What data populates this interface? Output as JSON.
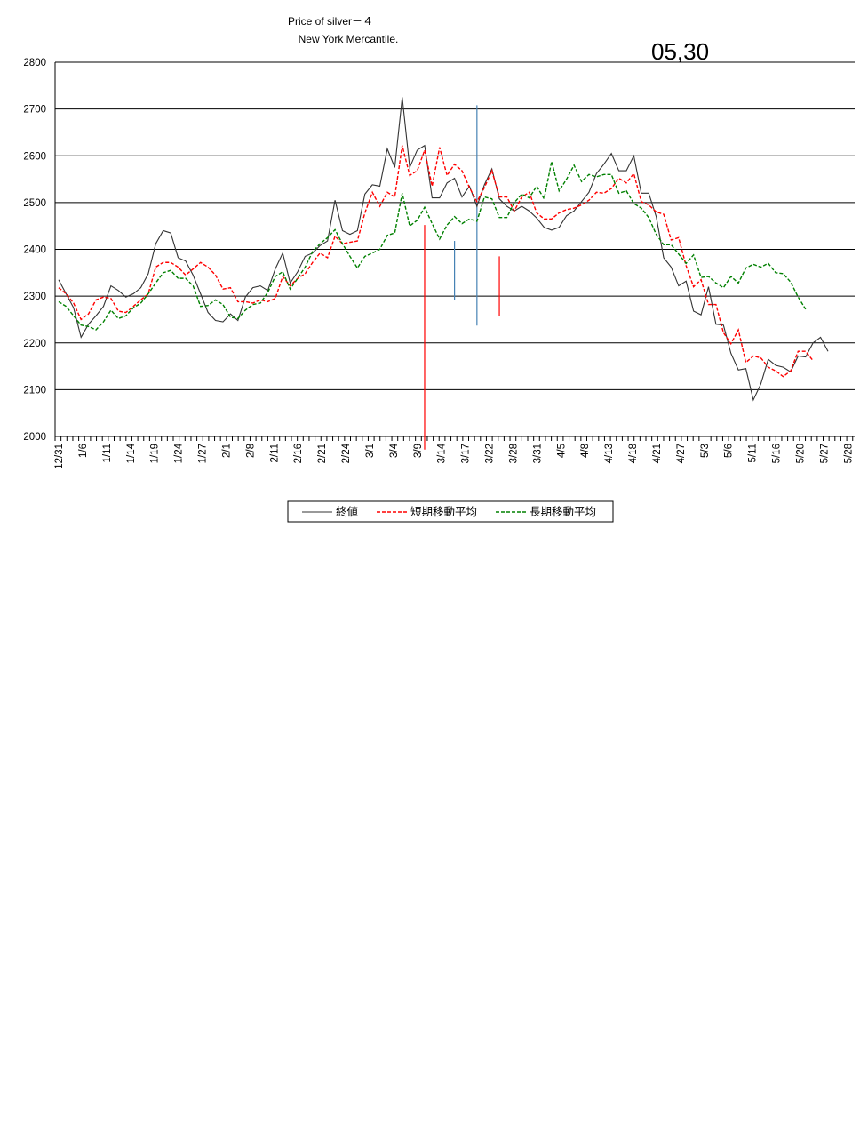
{
  "chart_data": {
    "type": "line",
    "title": "Price of silver－４",
    "subtitle": "New York Mercantile.",
    "date_stamp": "05,30",
    "ylim": [
      2000,
      2800
    ],
    "yticks": [
      "2000",
      "2100",
      "2200",
      "2300",
      "2400",
      "2500",
      "2600",
      "2700",
      "2800"
    ],
    "xtick_labels": [
      "12/31",
      "1/6",
      "1/11",
      "1/14",
      "1/19",
      "1/24",
      "1/27",
      "2/1",
      "2/8",
      "2/11",
      "2/16",
      "2/21",
      "2/24",
      "3/1",
      "3/4",
      "3/9",
      "3/14",
      "3/17",
      "3/22",
      "3/28",
      "3/31",
      "4/5",
      "4/8",
      "4/13",
      "4/18",
      "4/21",
      "4/27",
      "5/3",
      "5/6",
      "5/11",
      "5/16",
      "5/20",
      "5/27",
      "5/28"
    ],
    "grid": true,
    "legend_position": "bottom",
    "colors": {
      "close": "#333333",
      "short": "#ff0000",
      "long": "#008000",
      "grid": "#000000"
    },
    "series": [
      {
        "name": "終値",
        "style": "solid",
        "values": [
          2335,
          2305,
          2275,
          2212,
          2240,
          2258,
          2278,
          2322,
          2312,
          2298,
          2305,
          2318,
          2348,
          2412,
          2440,
          2435,
          2382,
          2375,
          2345,
          2305,
          2265,
          2248,
          2245,
          2262,
          2248,
          2298,
          2318,
          2322,
          2312,
          2358,
          2392,
          2328,
          2352,
          2385,
          2392,
          2408,
          2418,
          2505,
          2440,
          2432,
          2440,
          2518,
          2538,
          2535,
          2615,
          2575,
          2725,
          2575,
          2612,
          2622,
          2510,
          2510,
          2542,
          2552,
          2512,
          2535,
          2492,
          2538,
          2572,
          2508,
          2492,
          2482,
          2492,
          2482,
          2467,
          2447,
          2441,
          2447,
          2472,
          2482,
          2502,
          2522,
          2562,
          2582,
          2605,
          2568,
          2568,
          2600,
          2520,
          2520,
          2470,
          2382,
          2362,
          2322,
          2332,
          2268,
          2260,
          2320,
          2240,
          2238,
          2178,
          2142,
          2145,
          2078,
          2112,
          2165,
          2152,
          2148,
          2138,
          2172,
          2170,
          2200,
          2212,
          2182
        ]
      },
      {
        "name": "短期移動平均",
        "style": "dashed",
        "values": [
          2318,
          2305,
          2285,
          2250,
          2262,
          2292,
          2298,
          2295,
          2268,
          2265,
          2278,
          2292,
          2305,
          2362,
          2372,
          2372,
          2362,
          2345,
          2358,
          2372,
          2362,
          2345,
          2315,
          2318,
          2288,
          2288,
          2285,
          2292,
          2288,
          2295,
          2342,
          2322,
          2338,
          2348,
          2372,
          2392,
          2382,
          2428,
          2412,
          2415,
          2418,
          2478,
          2522,
          2492,
          2522,
          2512,
          2622,
          2558,
          2568,
          2612,
          2535,
          2618,
          2558,
          2582,
          2568,
          2532,
          2502,
          2532,
          2568,
          2512,
          2512,
          2482,
          2512,
          2522,
          2478,
          2465,
          2465,
          2478,
          2485,
          2488,
          2495,
          2505,
          2522,
          2520,
          2530,
          2552,
          2542,
          2562,
          2502,
          2495,
          2480,
          2475,
          2420,
          2425,
          2365,
          2320,
          2335,
          2282,
          2282,
          2222,
          2198,
          2228,
          2158,
          2172,
          2168,
          2148,
          2140,
          2128,
          2140,
          2182,
          2182,
          2162
        ]
      },
      {
        "name": "長期移動平均",
        "style": "dashed",
        "values": [
          2288,
          2278,
          2258,
          2238,
          2235,
          2228,
          2245,
          2270,
          2252,
          2258,
          2275,
          2285,
          2305,
          2328,
          2350,
          2355,
          2338,
          2338,
          2322,
          2278,
          2280,
          2292,
          2282,
          2255,
          2252,
          2270,
          2282,
          2285,
          2308,
          2342,
          2352,
          2315,
          2338,
          2362,
          2395,
          2412,
          2425,
          2442,
          2412,
          2385,
          2360,
          2385,
          2392,
          2400,
          2430,
          2435,
          2520,
          2450,
          2462,
          2490,
          2455,
          2422,
          2452,
          2470,
          2455,
          2465,
          2460,
          2512,
          2508,
          2468,
          2468,
          2500,
          2518,
          2510,
          2535,
          2508,
          2588,
          2525,
          2550,
          2580,
          2545,
          2560,
          2555,
          2560,
          2560,
          2520,
          2525,
          2498,
          2488,
          2468,
          2432,
          2410,
          2410,
          2390,
          2370,
          2388,
          2340,
          2342,
          2328,
          2318,
          2342,
          2328,
          2360,
          2368,
          2362,
          2370,
          2350,
          2348,
          2330,
          2298,
          2272
        ]
      }
    ],
    "markers": [
      {
        "x_index": 49,
        "from": 2452,
        "to": 1972,
        "color": "#ff0000"
      },
      {
        "x_index": 53,
        "from": 2418,
        "to": 2292,
        "color": "#4682b4"
      },
      {
        "x_index": 56,
        "from": 2708,
        "to": 2237,
        "color": "#4682b4"
      },
      {
        "x_index": 59,
        "from": 2385,
        "to": 2257,
        "color": "#ff0000"
      }
    ]
  }
}
